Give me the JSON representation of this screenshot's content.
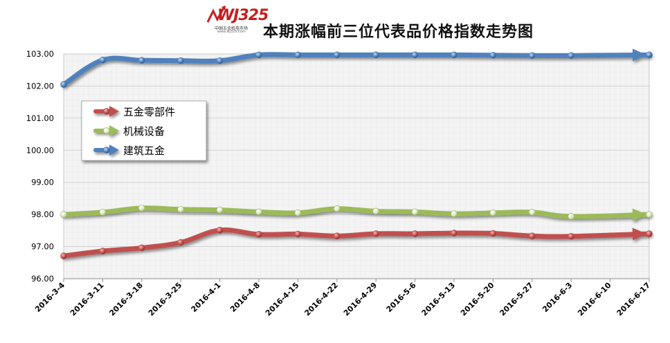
{
  "header": {
    "title": "本期涨幅前三位代表品价格指数走势图",
    "logo_text": "WJ325",
    "logo_sub": "中国五金机电市场",
    "logo_url": "www.wj325.com"
  },
  "colors": {
    "wujin": "#c0504d",
    "jixie": "#9bbb59",
    "jianzhu": "#4f81bd",
    "grid": "#d0d0d0",
    "plot_bg": "#f6f6f6"
  },
  "chart_data": {
    "type": "line",
    "title": "本期涨幅前三位代表品价格指数走势图",
    "xlabel": "",
    "ylabel": "",
    "ylim": [
      96.0,
      103.0
    ],
    "yticks": [
      "96.00",
      "97.00",
      "98.00",
      "99.00",
      "100.00",
      "101.00",
      "102.00",
      "103.00"
    ],
    "ytick_values": [
      96,
      97,
      98,
      99,
      100,
      101,
      102,
      103
    ],
    "grid": true,
    "legend_position": "upper-left",
    "categories": [
      "2016-3-4",
      "2016-3-11",
      "2016-3-18",
      "2016-3-25",
      "2016-4-1",
      "2016-4-8",
      "2016-4-15",
      "2016-4-22",
      "2016-4-29",
      "2016-5-6",
      "2016-5-13",
      "2016-5-20",
      "2016-5-27",
      "2016-6-3",
      "2016-6-10",
      "2016-6-17"
    ],
    "series": [
      {
        "name": "五金零部件",
        "color": "#c0504d",
        "values": [
          96.71,
          96.86,
          96.96,
          97.13,
          97.51,
          97.38,
          97.39,
          97.33,
          97.4,
          97.4,
          97.42,
          97.41,
          97.33,
          97.32,
          null,
          97.4
        ]
      },
      {
        "name": "机械设备",
        "color": "#9bbb59",
        "values": [
          98.0,
          98.07,
          98.2,
          98.16,
          98.14,
          98.08,
          98.05,
          98.18,
          98.1,
          98.08,
          98.02,
          98.05,
          98.07,
          97.94,
          null,
          98.0
        ]
      },
      {
        "name": "建筑五金",
        "color": "#4f81bd",
        "values": [
          102.05,
          102.81,
          102.8,
          102.79,
          102.79,
          102.97,
          102.97,
          102.97,
          102.97,
          102.97,
          102.97,
          102.96,
          102.95,
          102.95,
          null,
          102.97
        ]
      }
    ]
  }
}
